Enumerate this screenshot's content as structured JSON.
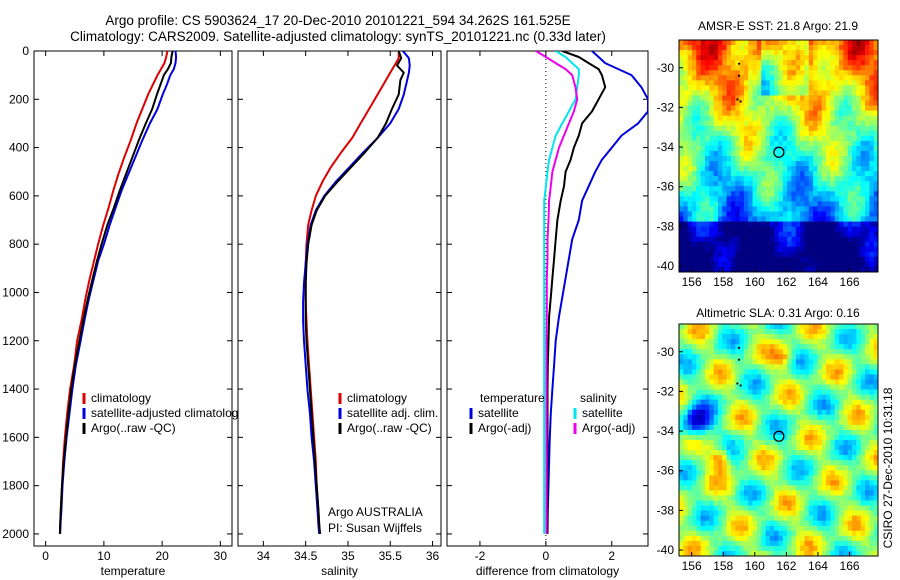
{
  "title_line1": "Argo profile: CS 5903624_17 20-Dec-2010 20101221_594 34.262S 161.525E",
  "title_line2": "Climatology: CARS2009. Satellite-adjusted climatology: synTS_20101221.nc (0.33d later)",
  "stamp": "CSIRO 27-Dec-2010 10:31:18",
  "colors": {
    "climatology": "#dd0000",
    "satellite": "#0000dd",
    "argo": "#000000",
    "satellite_salinity": "#00e5ee",
    "argo_salinity": "#ee00ee"
  },
  "chart_data": [
    {
      "id": "temperature",
      "type": "line",
      "xlabel": "temperature",
      "ylabel": "",
      "xlim": [
        -2,
        32
      ],
      "ylim": [
        2050,
        0
      ],
      "y_inverted": true,
      "xticks": [
        0,
        10,
        20,
        30
      ],
      "yticks": [
        0,
        200,
        400,
        600,
        800,
        1000,
        1200,
        1400,
        1600,
        1800,
        2000
      ],
      "legend": [
        "climatology",
        "satellite-adjusted climatolog",
        "Argo(..raw -QC)"
      ],
      "series": [
        {
          "name": "climatology",
          "color_key": "climatology",
          "x": [
            20.9,
            20.7,
            20.4,
            19.8,
            19.2,
            18.4,
            17.6,
            16.6,
            15.6,
            14.6,
            13.5,
            12.5,
            11.6,
            10.8,
            9.9,
            9.0,
            8.3,
            7.5,
            6.8,
            6.2,
            5.4,
            4.9,
            4.2,
            3.7,
            3.3,
            3.0,
            2.8,
            2.6,
            2.5,
            2.45
          ],
          "y": [
            0,
            25,
            50,
            75,
            100,
            140,
            180,
            240,
            300,
            370,
            440,
            510,
            580,
            650,
            720,
            800,
            870,
            950,
            1030,
            1110,
            1200,
            1300,
            1400,
            1500,
            1600,
            1700,
            1800,
            1900,
            1960,
            2000
          ]
        },
        {
          "name": "satellite-adjusted climatolog",
          "color_key": "satellite",
          "x": [
            22.3,
            22.4,
            22.3,
            22.0,
            21.4,
            20.8,
            20.1,
            19.2,
            17.9,
            16.6,
            15.4,
            14.2,
            13.0,
            12.0,
            11.0,
            10.0,
            9.0,
            8.2,
            7.4,
            6.7,
            6.0,
            5.2,
            4.6,
            4.1,
            3.6,
            3.2,
            2.9,
            2.7,
            2.55,
            2.5
          ],
          "y": [
            0,
            25,
            50,
            75,
            100,
            140,
            180,
            240,
            300,
            370,
            440,
            510,
            580,
            650,
            720,
            800,
            870,
            950,
            1030,
            1110,
            1200,
            1300,
            1400,
            1500,
            1600,
            1700,
            1800,
            1900,
            1960,
            2000
          ]
        },
        {
          "name": "Argo(..raw -QC)",
          "color_key": "argo",
          "x": [
            21.8,
            21.6,
            21.5,
            21.0,
            20.3,
            19.7,
            19.1,
            18.3,
            17.2,
            16.0,
            14.9,
            13.8,
            12.7,
            11.7,
            10.6,
            9.6,
            8.8,
            8.0,
            7.2,
            6.5,
            5.8,
            5.0,
            4.4,
            3.9,
            3.5,
            3.1,
            2.8,
            2.6,
            2.5,
            2.45
          ],
          "y": [
            0,
            25,
            50,
            75,
            100,
            140,
            180,
            240,
            300,
            370,
            440,
            510,
            580,
            650,
            720,
            800,
            870,
            950,
            1030,
            1110,
            1200,
            1300,
            1400,
            1500,
            1600,
            1700,
            1800,
            1900,
            1960,
            2000
          ]
        }
      ]
    },
    {
      "id": "salinity",
      "type": "line",
      "xlabel": "salinity",
      "ylabel": "",
      "xlim": [
        33.7,
        36.1
      ],
      "ylim": [
        2050,
        0
      ],
      "y_inverted": true,
      "xticks": [
        34,
        34.5,
        35,
        35.5,
        36
      ],
      "legend": [
        "climatology",
        "satellite adj. clim.",
        "Argo(..raw -QC)"
      ],
      "annotation": [
        "Argo AUSTRALIA",
        "PI: Susan Wijffels"
      ],
      "series": [
        {
          "name": "climatology",
          "color_key": "climatology",
          "x": [
            35.6,
            35.6,
            35.55,
            35.5,
            35.45,
            35.35,
            35.25,
            35.15,
            35.05,
            34.92,
            34.8,
            34.7,
            34.62,
            34.57,
            34.53,
            34.51,
            34.5,
            34.5,
            34.5,
            34.51,
            34.52,
            34.54,
            34.56,
            34.58,
            34.6,
            34.62,
            34.63,
            34.65,
            34.66,
            34.67
          ],
          "y": [
            0,
            30,
            60,
            90,
            120,
            180,
            240,
            300,
            360,
            420,
            480,
            540,
            600,
            660,
            720,
            800,
            880,
            960,
            1040,
            1120,
            1200,
            1300,
            1400,
            1500,
            1600,
            1700,
            1800,
            1900,
            1960,
            2000
          ]
        },
        {
          "name": "satellite adj. clim.",
          "color_key": "satellite",
          "x": [
            35.65,
            35.72,
            35.73,
            35.72,
            35.7,
            35.66,
            35.6,
            35.5,
            35.35,
            35.18,
            35.02,
            34.86,
            34.72,
            34.62,
            34.56,
            34.52,
            34.5,
            34.48,
            34.47,
            34.47,
            34.48,
            34.5,
            34.52,
            34.55,
            34.57,
            34.6,
            34.62,
            34.64,
            34.65,
            34.66
          ],
          "y": [
            0,
            30,
            60,
            90,
            120,
            180,
            240,
            300,
            360,
            420,
            480,
            540,
            600,
            660,
            720,
            800,
            880,
            960,
            1040,
            1120,
            1200,
            1300,
            1400,
            1500,
            1600,
            1700,
            1800,
            1900,
            1960,
            2000
          ]
        },
        {
          "name": "Argo(..raw -QC)",
          "color_key": "argo",
          "x": [
            35.6,
            35.63,
            35.58,
            35.66,
            35.62,
            35.6,
            35.52,
            35.45,
            35.35,
            35.2,
            35.04,
            34.88,
            34.73,
            34.63,
            34.57,
            34.53,
            34.51,
            34.5,
            34.5,
            34.5,
            34.51,
            34.53,
            34.55,
            34.57,
            34.59,
            34.61,
            34.63,
            34.65,
            34.66,
            34.67
          ],
          "y": [
            0,
            30,
            60,
            90,
            120,
            180,
            240,
            300,
            360,
            420,
            480,
            540,
            600,
            660,
            720,
            800,
            880,
            960,
            1040,
            1120,
            1200,
            1300,
            1400,
            1500,
            1600,
            1700,
            1800,
            1900,
            1960,
            2000
          ]
        }
      ]
    },
    {
      "id": "difference",
      "type": "line",
      "xlabel": "difference from climatology",
      "ylabel": "",
      "xlim": [
        -3,
        3.1
      ],
      "ylim": [
        2050,
        0
      ],
      "y_inverted": true,
      "xticks": [
        -2,
        0,
        2
      ],
      "reference_line_x": 0,
      "legend_left_title": "temperature",
      "legend_right_title": "salinity",
      "legend": [
        "satellite",
        "Argo(-adj)",
        "satellite",
        "Argo(-adj)"
      ],
      "series": [
        {
          "name": "satellite",
          "group": "temperature",
          "color_key": "satellite",
          "x": [
            1.4,
            1.6,
            1.8,
            2.2,
            2.6,
            2.9,
            3.1,
            3.1,
            2.8,
            2.3,
            2.0,
            1.7,
            1.5,
            1.3,
            1.1,
            1.0,
            0.8,
            0.7,
            0.6,
            0.5,
            0.4,
            0.3,
            0.25,
            0.2,
            0.15,
            0.12,
            0.1,
            0.08,
            0.06,
            0.05
          ],
          "y": [
            0,
            25,
            50,
            75,
            100,
            150,
            200,
            250,
            300,
            350,
            400,
            450,
            500,
            560,
            620,
            700,
            780,
            860,
            940,
            1020,
            1100,
            1200,
            1300,
            1400,
            1500,
            1600,
            1700,
            1800,
            1900,
            2000
          ]
        },
        {
          "name": "Argo(-adj)",
          "group": "temperature",
          "color_key": "argo",
          "x": [
            0.5,
            1.0,
            1.3,
            1.6,
            1.7,
            1.8,
            1.6,
            1.4,
            1.1,
            1.0,
            0.85,
            0.75,
            0.6,
            0.55,
            0.45,
            0.35,
            0.3,
            0.25,
            0.2,
            0.15,
            0.1,
            0.08,
            0.06,
            0.05,
            0.05,
            0.05,
            0.05,
            0.05,
            0.05,
            0.05
          ],
          "y": [
            0,
            25,
            50,
            75,
            100,
            150,
            200,
            250,
            300,
            350,
            400,
            450,
            500,
            560,
            620,
            700,
            780,
            860,
            940,
            1020,
            1100,
            1200,
            1300,
            1400,
            1500,
            1600,
            1700,
            1800,
            1900,
            2000
          ]
        },
        {
          "name": "satellite",
          "group": "salinity",
          "color_key": "satellite_salinity",
          "x": [
            0.3,
            0.6,
            0.8,
            1.0,
            1.0,
            0.95,
            0.9,
            0.7,
            0.5,
            0.3,
            0.2,
            0.1,
            0.05,
            0.0,
            -0.05,
            -0.05,
            -0.05,
            -0.05,
            -0.05,
            -0.05,
            -0.05,
            -0.05,
            -0.05,
            -0.05,
            -0.05,
            -0.05,
            -0.05,
            -0.05,
            -0.05,
            -0.05
          ],
          "y": [
            0,
            25,
            50,
            75,
            100,
            150,
            200,
            250,
            300,
            350,
            400,
            450,
            500,
            560,
            620,
            700,
            780,
            860,
            940,
            1020,
            1100,
            1200,
            1300,
            1400,
            1500,
            1600,
            1700,
            1800,
            1900,
            2000
          ]
        },
        {
          "name": "Argo(-adj)",
          "group": "salinity",
          "color_key": "argo_salinity",
          "x": [
            -0.3,
            0.0,
            0.3,
            0.6,
            0.8,
            0.9,
            0.95,
            0.85,
            0.7,
            0.55,
            0.4,
            0.3,
            0.2,
            0.15,
            0.1,
            0.08,
            0.05,
            0.05,
            0.03,
            0.03,
            0.03,
            0.02,
            0.02,
            0.02,
            0.02,
            0.02,
            0.02,
            0.02,
            0.02,
            0.02
          ],
          "y": [
            0,
            25,
            50,
            75,
            100,
            150,
            200,
            250,
            300,
            350,
            400,
            450,
            500,
            560,
            620,
            700,
            780,
            860,
            940,
            1020,
            1100,
            1200,
            1300,
            1400,
            1500,
            1600,
            1700,
            1800,
            1900,
            2000
          ]
        }
      ]
    },
    {
      "id": "amsre-sst",
      "type": "heatmap",
      "title": "AMSR-E SST: 21.8 Argo: 21.9",
      "xlim": [
        155.2,
        167.8
      ],
      "ylim": [
        -40.3,
        -28.6
      ],
      "xticks": [
        156,
        158,
        160,
        162,
        164,
        166
      ],
      "yticks": [
        -30,
        -32,
        -34,
        -36,
        -38,
        -40
      ],
      "colormap": "jet",
      "marker": {
        "lon": 161.525,
        "lat": -34.262
      }
    },
    {
      "id": "altimetric-sla",
      "type": "heatmap",
      "title": "Altimetric SLA: 0.31 Argo: 0.16",
      "xlim": [
        155.2,
        167.8
      ],
      "ylim": [
        -40.3,
        -28.6
      ],
      "xticks": [
        156,
        158,
        160,
        162,
        164,
        166
      ],
      "yticks": [
        -30,
        -32,
        -34,
        -36,
        -38,
        -40
      ],
      "colormap": "jet",
      "marker": {
        "lon": 161.525,
        "lat": -34.262
      }
    }
  ]
}
